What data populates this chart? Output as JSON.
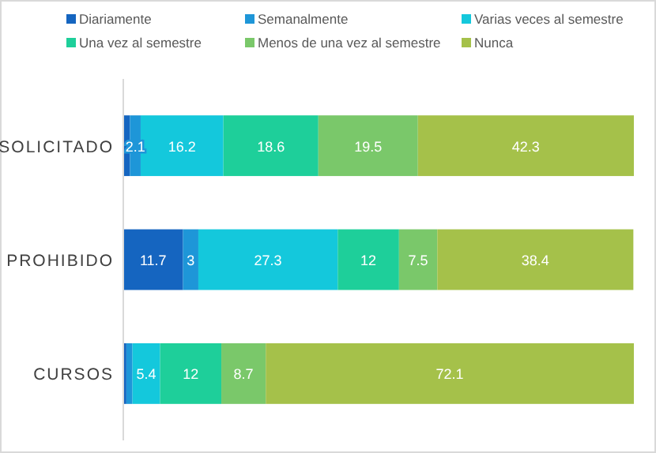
{
  "chart_data": {
    "type": "bar",
    "orientation": "horizontal",
    "stacked": true,
    "legend": "top",
    "categories": [
      "SOLICITADO",
      "PROHIBIDO",
      "CURSOS"
    ],
    "series": [
      {
        "name": "Diariamente",
        "color": "#1565c0",
        "values": [
          1.3,
          11.7,
          0.6
        ],
        "value_labels": [
          null,
          "11.7",
          null
        ]
      },
      {
        "name": "Semanalmente",
        "color": "#1e96d8",
        "values": [
          2.1,
          3,
          1.2
        ],
        "value_labels": [
          "2.1",
          "3",
          null
        ]
      },
      {
        "name": "Varias veces al semestre",
        "color": "#14c8dc",
        "values": [
          16.2,
          27.3,
          5.4
        ],
        "value_labels": [
          "16.2",
          "27.3",
          "5.4"
        ]
      },
      {
        "name": "Una vez al semestre",
        "color": "#1ecf9a",
        "values": [
          18.6,
          12,
          12
        ],
        "value_labels": [
          "18.6",
          "12",
          "12"
        ]
      },
      {
        "name": "Menos de una vez al semestre",
        "color": "#7ac86a",
        "values": [
          19.5,
          7.5,
          8.7
        ],
        "value_labels": [
          "19.5",
          "7.5",
          "8.7"
        ]
      },
      {
        "name": "Nunca",
        "color": "#a5c14a",
        "values": [
          42.3,
          38.4,
          72.1
        ],
        "value_labels": [
          "42.3",
          "38.4",
          "72.1"
        ]
      }
    ]
  }
}
